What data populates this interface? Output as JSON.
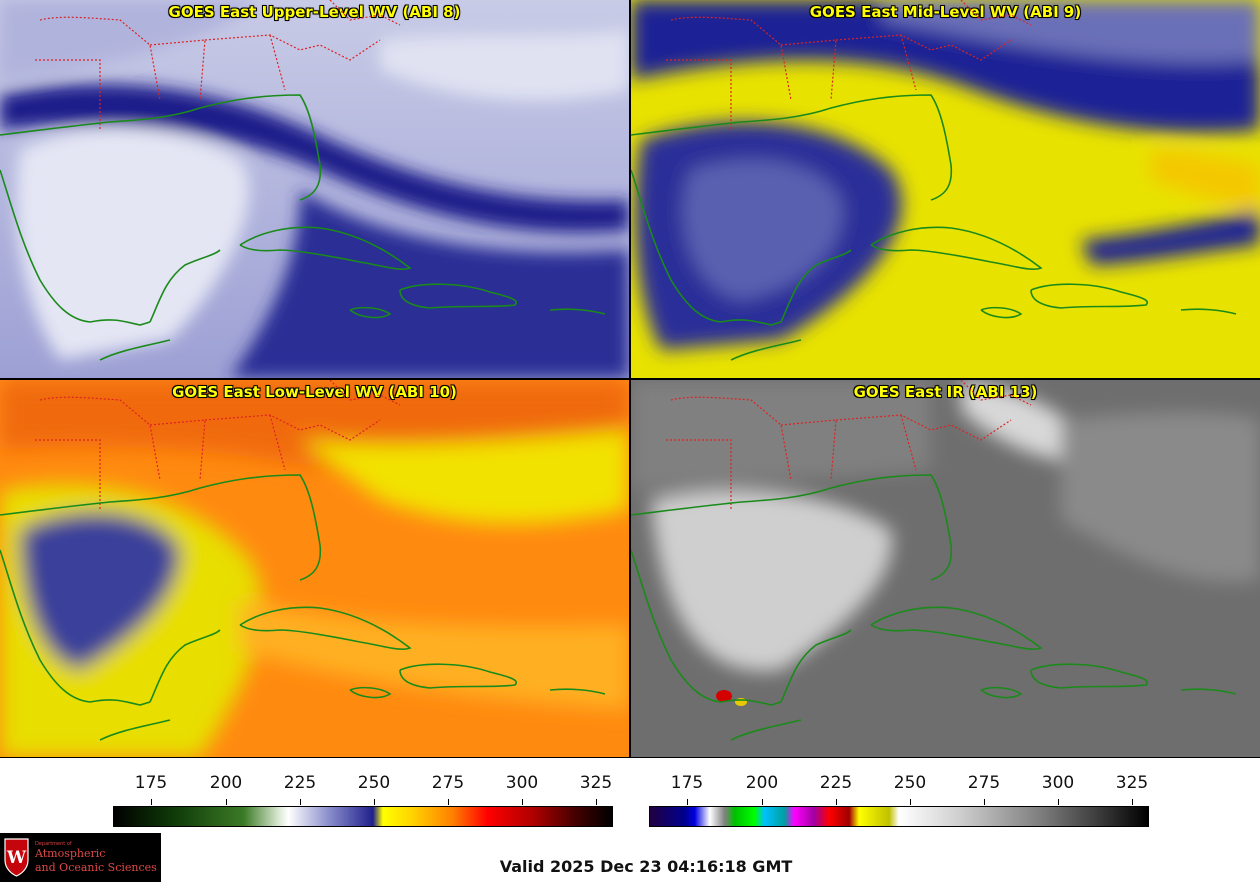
{
  "panels": [
    {
      "title": "GOES East Upper-Level WV (ABI 8)"
    },
    {
      "title": "GOES East Mid-Level WV (ABI 9)"
    },
    {
      "title": "GOES East Low-Level WV (ABI 10)"
    },
    {
      "title": "GOES East IR (ABI 13)"
    }
  ],
  "colorbars": [
    {
      "name": "water-vapor",
      "ticks": [
        "175",
        "200",
        "225",
        "250",
        "275",
        "300",
        "325"
      ]
    },
    {
      "name": "infrared",
      "ticks": [
        "175",
        "200",
        "225",
        "250",
        "275",
        "300",
        "325"
      ]
    }
  ],
  "logo": {
    "dept": "Department of",
    "line1": "Atmospheric",
    "line2": "and Oceanic Sciences",
    "seal_letter": "W"
  },
  "valid_time": "Valid 2025 Dec 23 04:16:18 GMT",
  "colors": {
    "title_text": "#ffff00",
    "coastline": "#1a8a1a",
    "state_border": "#dd2222"
  }
}
